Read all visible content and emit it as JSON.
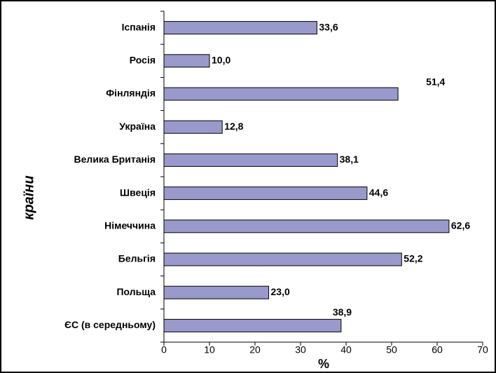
{
  "chart_data": {
    "type": "barh",
    "categories": [
      "Іспанія",
      "Росія",
      "Фінляндія",
      "Україна",
      "Велика Британія",
      "Швеція",
      "Німеччина",
      "Бельгія",
      "Польща",
      "ЄС (в середньому)"
    ],
    "values": [
      33.6,
      10.0,
      51.4,
      12.8,
      38.1,
      44.6,
      62.6,
      52.2,
      23.0,
      38.9
    ],
    "value_labels": [
      "33,6",
      "10,0",
      "51,4",
      "12,8",
      "38,1",
      "44,6",
      "62,6",
      "52,2",
      "23,0",
      "38,9"
    ],
    "color": "#9999cc",
    "xlim": [
      0,
      70
    ],
    "xticks": [
      0,
      10,
      20,
      30,
      40,
      50,
      60,
      70
    ],
    "xlabel": "%",
    "ylabel": "країни"
  }
}
